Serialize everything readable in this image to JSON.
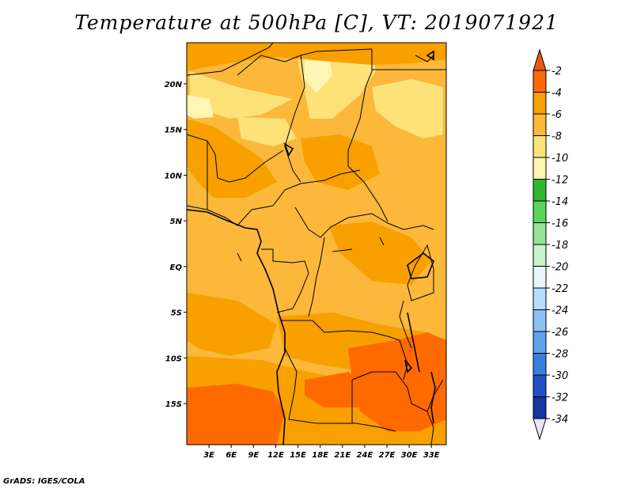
{
  "title": "Temperature at 500hPa [C], VT: 2019071921",
  "credit": "GrADS: IGES/COLA",
  "map": {
    "lon_range": [
      0,
      35
    ],
    "lat_range": [
      -19.5,
      24.5
    ],
    "y_ticks": [
      {
        "label": "20N",
        "lat": 20
      },
      {
        "label": "15N",
        "lat": 15
      },
      {
        "label": "10N",
        "lat": 10
      },
      {
        "label": "5N",
        "lat": 5
      },
      {
        "label": "EQ",
        "lat": 0
      },
      {
        "label": "5S",
        "lat": -5
      },
      {
        "label": "10S",
        "lat": -10
      },
      {
        "label": "15S",
        "lat": -15
      }
    ],
    "x_ticks": [
      {
        "label": "3E",
        "lon": 3
      },
      {
        "label": "6E",
        "lon": 6
      },
      {
        "label": "9E",
        "lon": 9
      },
      {
        "label": "12E",
        "lon": 12
      },
      {
        "label": "15E",
        "lon": 15
      },
      {
        "label": "18E",
        "lon": 18
      },
      {
        "label": "21E",
        "lon": 21
      },
      {
        "label": "24E",
        "lon": 24
      },
      {
        "label": "27E",
        "lon": 27
      },
      {
        "label": "30E",
        "lon": 30
      },
      {
        "label": "33E",
        "lon": 33
      }
    ]
  },
  "colorbar": {
    "labels": [
      "-2",
      "-4",
      "-6",
      "-8",
      "-10",
      "-12",
      "-14",
      "-16",
      "-18",
      "-20",
      "-22",
      "-24",
      "-26",
      "-28",
      "-30",
      "-32",
      "-34"
    ],
    "colors": [
      "#e65a10",
      "#ff6a00",
      "#f7a000",
      "#fbb83a",
      "#fde27a",
      "#fff5b5",
      "#2eb82e",
      "#5ad45a",
      "#96e296",
      "#c8f2c8",
      "#e6f6ff",
      "#b7dcff",
      "#8cc1f5",
      "#5ea4ec",
      "#3a7fe0",
      "#2050c8",
      "#1535a0",
      "#0a1a78",
      "#e6e6ff"
    ]
  }
}
